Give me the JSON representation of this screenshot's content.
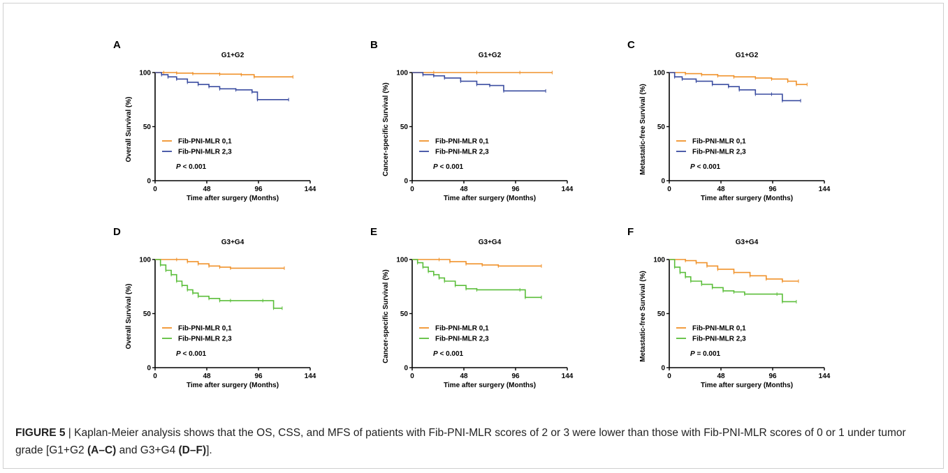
{
  "caption": {
    "label": "FIGURE 5",
    "text": " | Kaplan-Meier analysis shows that the OS, CSS, and MFS of patients with Fib-PNI-MLR scores of 2 or 3 were lower than those with Fib-PNI-MLR scores of 0 or 1 under tumor grade [G1+G2 ",
    "ref1": "(A–C)",
    "mid": " and G3+G4 ",
    "ref2": "(D–F)",
    "end": "]."
  },
  "colors": {
    "low_score": "#F0922B",
    "high_score_G12": "#3A4CA0",
    "high_score_G34": "#5BBE3A",
    "axis": "#000000"
  },
  "chart_data": [
    {
      "panel": "A",
      "type": "line",
      "title": "G1+G2",
      "xlabel": "Time after surgery (Months)",
      "ylabel": "Overall Survival (%)",
      "xlim": [
        0,
        144
      ],
      "ylim": [
        0,
        100
      ],
      "xticks": [
        "0",
        "48",
        "96",
        "144"
      ],
      "yticks": [
        "0",
        "50",
        "100"
      ],
      "pvalue": "< 0.001",
      "series": [
        {
          "name": "Fib-PNI-MLR 0,1",
          "color": "#F0922B",
          "x": [
            0,
            8,
            20,
            35,
            60,
            80,
            92,
            128
          ],
          "y": [
            100,
            100,
            99.5,
            99,
            98.5,
            98,
            96,
            96
          ]
        },
        {
          "name": "Fib-PNI-MLR 2,3",
          "color": "#3A4CA0",
          "x": [
            0,
            6,
            12,
            20,
            30,
            40,
            50,
            60,
            75,
            90,
            95,
            124
          ],
          "y": [
            100,
            98,
            96,
            94,
            91,
            89,
            87,
            85,
            84,
            82,
            75,
            75
          ]
        }
      ]
    },
    {
      "panel": "B",
      "type": "line",
      "title": "G1+G2",
      "xlabel": "Time after surgery (Months)",
      "ylabel": "Cancer-specific Survival (%)",
      "xlim": [
        0,
        144
      ],
      "ylim": [
        0,
        100
      ],
      "xticks": [
        "0",
        "48",
        "96",
        "144"
      ],
      "yticks": [
        "0",
        "50",
        "100"
      ],
      "pvalue": "< 0.001",
      "series": [
        {
          "name": "Fib-PNI-MLR 0,1",
          "color": "#F0922B",
          "x": [
            0,
            20,
            60,
            100,
            130
          ],
          "y": [
            100,
            100,
            100,
            100,
            100
          ]
        },
        {
          "name": "Fib-PNI-MLR 2,3",
          "color": "#3A4CA0",
          "x": [
            0,
            10,
            20,
            30,
            45,
            60,
            72,
            85,
            124
          ],
          "y": [
            100,
            98,
            97,
            95,
            92,
            89,
            88,
            83,
            83
          ]
        }
      ]
    },
    {
      "panel": "C",
      "type": "line",
      "title": "G1+G2",
      "xlabel": "Time after surgery (Months)",
      "ylabel": "Metastatic-free Survival (%)",
      "xlim": [
        0,
        144
      ],
      "ylim": [
        0,
        100
      ],
      "xticks": [
        "0",
        "48",
        "96",
        "144"
      ],
      "yticks": [
        "0",
        "50",
        "100"
      ],
      "pvalue": "< 0.001",
      "series": [
        {
          "name": "Fib-PNI-MLR 0,1",
          "color": "#F0922B",
          "x": [
            0,
            15,
            30,
            45,
            60,
            80,
            95,
            110,
            118,
            128
          ],
          "y": [
            100,
            99,
            98,
            97,
            96,
            95,
            94,
            92,
            89,
            89
          ]
        },
        {
          "name": "Fib-PNI-MLR 2,3",
          "color": "#3A4CA0",
          "x": [
            0,
            5,
            12,
            25,
            40,
            55,
            65,
            80,
            95,
            105,
            122
          ],
          "y": [
            100,
            96,
            94,
            92,
            89,
            87,
            84,
            80,
            80,
            74,
            74
          ]
        }
      ]
    },
    {
      "panel": "D",
      "type": "line",
      "title": "G3+G4",
      "xlabel": "Time after surgery (Months)",
      "ylabel": "Overall Survival (%)",
      "xlim": [
        0,
        144
      ],
      "ylim": [
        0,
        100
      ],
      "xticks": [
        "0",
        "48",
        "96",
        "144"
      ],
      "yticks": [
        "0",
        "50",
        "100"
      ],
      "pvalue": "< 0.001",
      "series": [
        {
          "name": "Fib-PNI-MLR 0,1",
          "color": "#F0922B",
          "x": [
            0,
            20,
            30,
            40,
            50,
            60,
            70,
            120
          ],
          "y": [
            100,
            100,
            98,
            96,
            94,
            93,
            92,
            92
          ]
        },
        {
          "name": "Fib-PNI-MLR 2,3",
          "color": "#5BBE3A",
          "x": [
            0,
            5,
            10,
            15,
            20,
            25,
            30,
            35,
            40,
            50,
            60,
            70,
            100,
            110,
            118
          ],
          "y": [
            100,
            95,
            90,
            86,
            80,
            76,
            72,
            69,
            66,
            64,
            62,
            62,
            62,
            55,
            55
          ]
        }
      ]
    },
    {
      "panel": "E",
      "type": "line",
      "title": "G3+G4",
      "xlabel": "Time after surgery (Months)",
      "ylabel": "Cancer-specific Survival (%)",
      "xlim": [
        0,
        144
      ],
      "ylim": [
        0,
        100
      ],
      "xticks": [
        "0",
        "48",
        "96",
        "144"
      ],
      "yticks": [
        "0",
        "50",
        "100"
      ],
      "pvalue": "< 0.001",
      "series": [
        {
          "name": "Fib-PNI-MLR 0,1",
          "color": "#F0922B",
          "x": [
            0,
            25,
            35,
            50,
            65,
            80,
            120
          ],
          "y": [
            100,
            100,
            98,
            96,
            95,
            94,
            94
          ]
        },
        {
          "name": "Fib-PNI-MLR 2,3",
          "color": "#5BBE3A",
          "x": [
            0,
            5,
            10,
            15,
            20,
            25,
            30,
            40,
            50,
            60,
            100,
            105,
            120
          ],
          "y": [
            100,
            97,
            93,
            89,
            86,
            83,
            80,
            76,
            73,
            72,
            72,
            65,
            65
          ]
        }
      ]
    },
    {
      "panel": "F",
      "type": "line",
      "title": "G3+G4",
      "xlabel": "Time after surgery (Months)",
      "ylabel": "Metastatic-free Survival (%)",
      "xlim": [
        0,
        144
      ],
      "ylim": [
        0,
        100
      ],
      "xticks": [
        "0",
        "48",
        "96",
        "144"
      ],
      "yticks": [
        "0",
        "50",
        "100"
      ],
      "pvalue": "= 0.001",
      "series": [
        {
          "name": "Fib-PNI-MLR 0,1",
          "color": "#F0922B",
          "x": [
            0,
            15,
            25,
            35,
            45,
            60,
            75,
            90,
            105,
            120
          ],
          "y": [
            100,
            99,
            97,
            94,
            91,
            88,
            85,
            82,
            80,
            80
          ]
        },
        {
          "name": "Fib-PNI-MLR 2,3",
          "color": "#5BBE3A",
          "x": [
            0,
            5,
            10,
            15,
            20,
            30,
            40,
            50,
            60,
            70,
            100,
            105,
            118
          ],
          "y": [
            100,
            93,
            88,
            84,
            80,
            77,
            74,
            71,
            70,
            68,
            68,
            61,
            61
          ]
        }
      ]
    }
  ]
}
